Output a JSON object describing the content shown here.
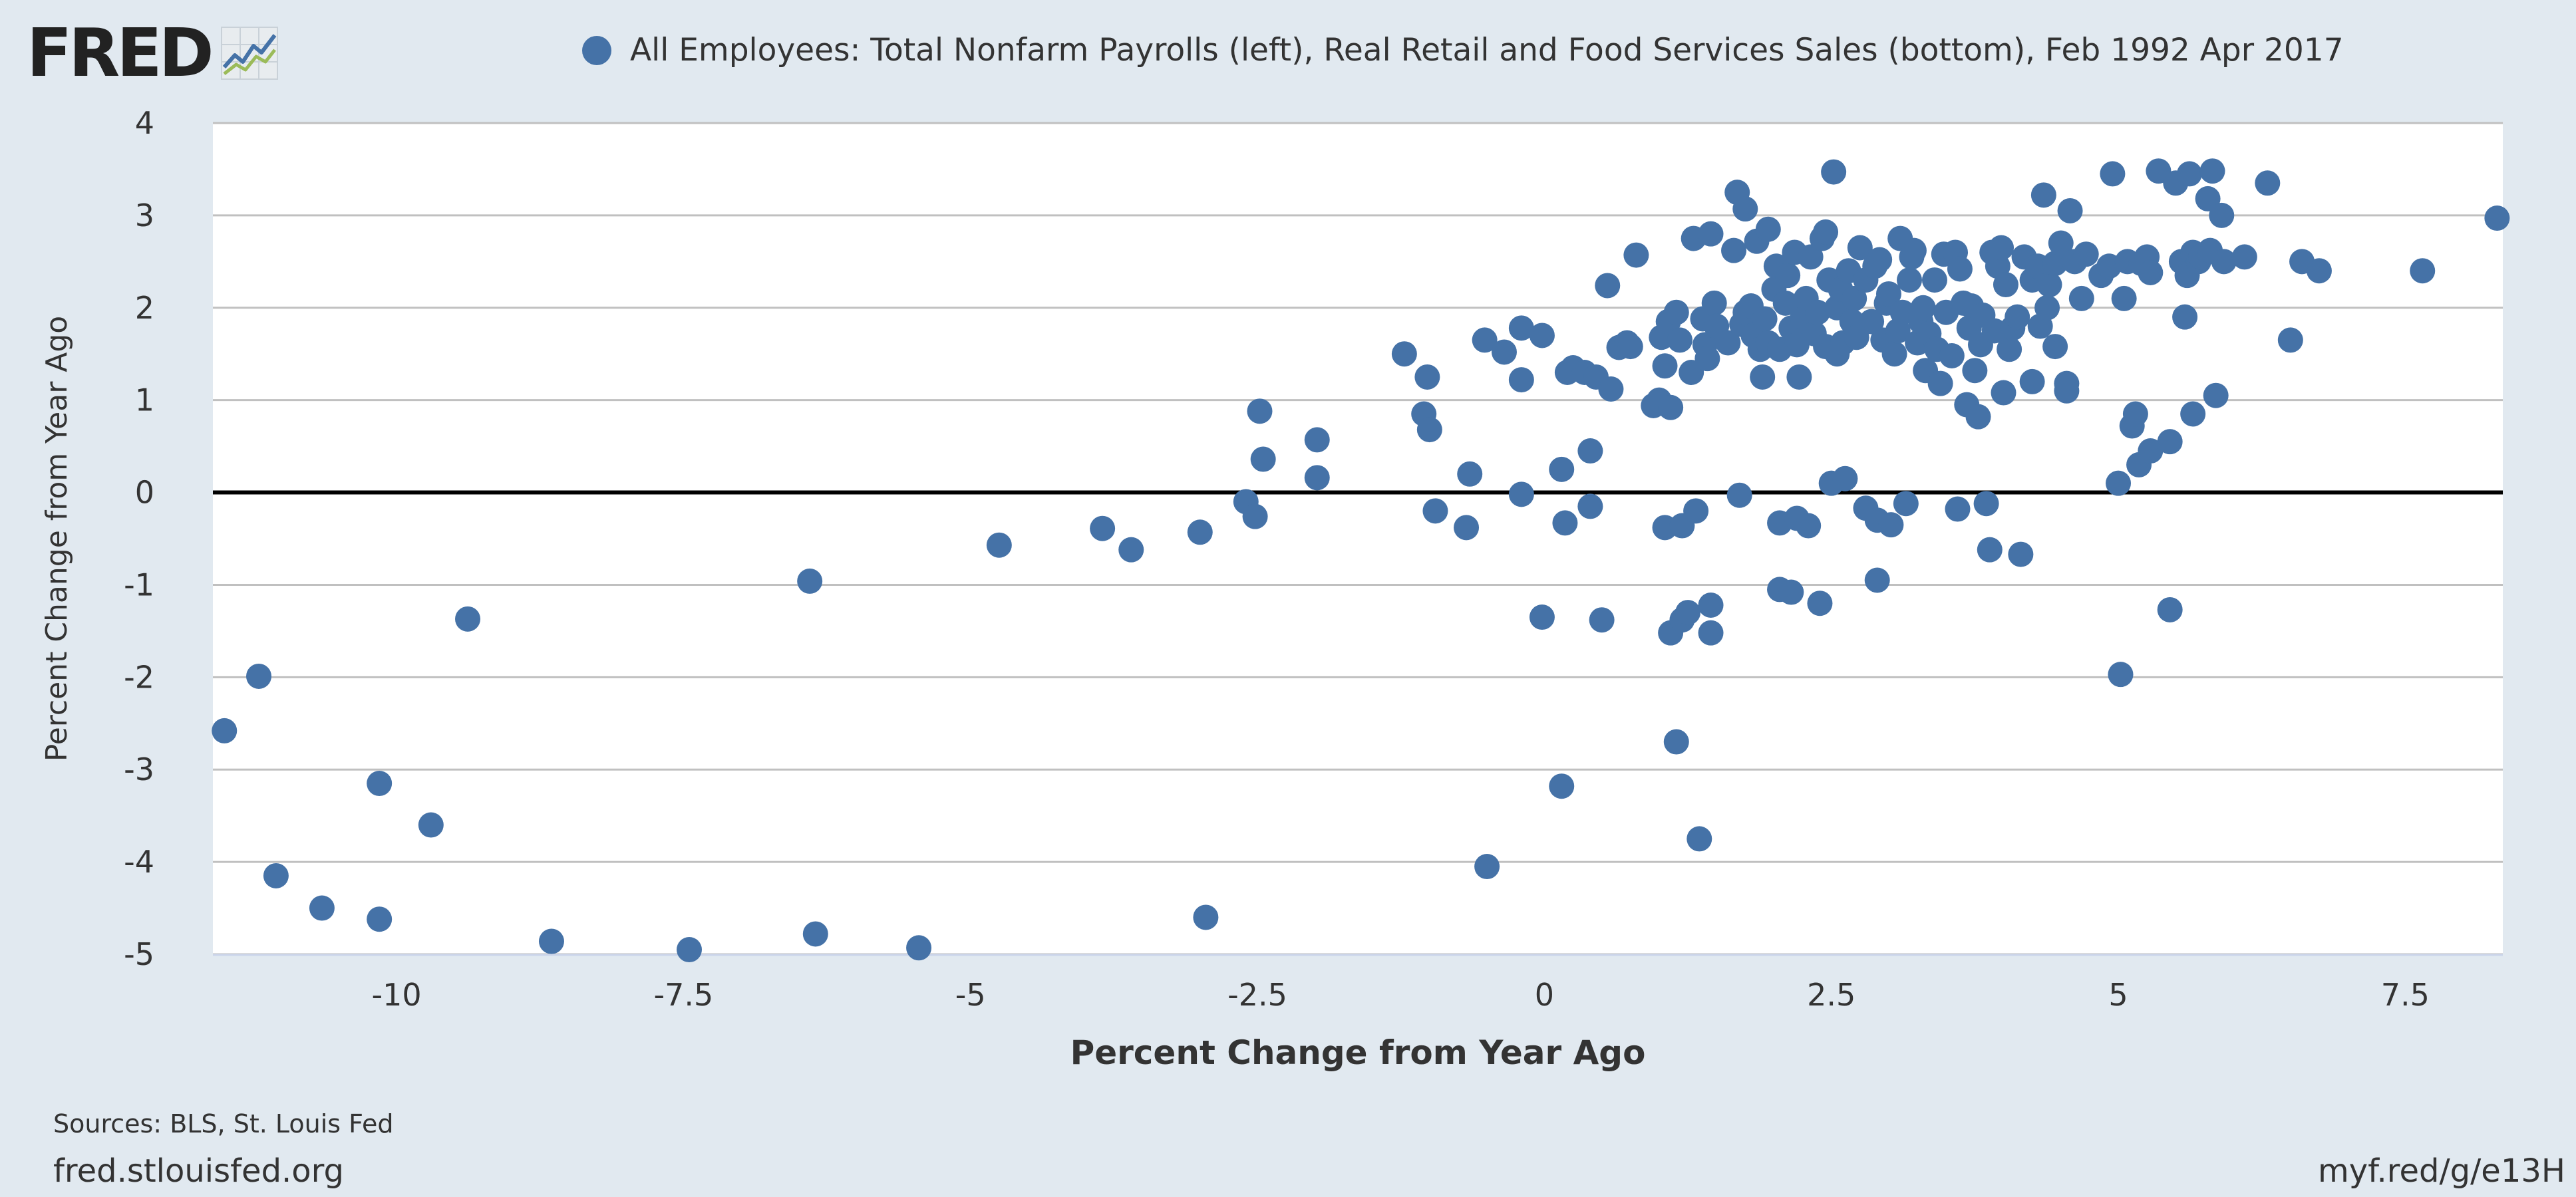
{
  "header": {
    "logo_text": "FRED",
    "logo_icon": "chart-trend-icon",
    "legend_label": "All Employees: Total Nonfarm Payrolls (left), Real Retail and Food Services Sales (bottom), Feb 1992 Apr 2017"
  },
  "footer": {
    "sources": "Sources: BLS, St. Louis Fed",
    "site": "fred.stlouisfed.org",
    "short_link": "myf.red/g/e13H"
  },
  "colors": {
    "background": "#e1e9f0",
    "plot_background": "#ffffff",
    "series": "#4572a7",
    "zero_line": "#000000",
    "grid": "#c0c0c0"
  },
  "chart_data": {
    "type": "scatter",
    "title": "",
    "xlabel": "Percent Change from Year Ago",
    "ylabel": "Percent Change from Year Ago",
    "xlim": [
      -11.6,
      8.35
    ],
    "ylim": [
      -5,
      4
    ],
    "x_ticks": [
      -10,
      -7.5,
      -5,
      -2.5,
      0,
      2.5,
      5,
      7.5
    ],
    "x_tick_labels": [
      "-10",
      "-7.5",
      "-5",
      "-2.5",
      "0",
      "2.5",
      "5",
      "7.5"
    ],
    "y_ticks": [
      4,
      3,
      2,
      1,
      0,
      -1,
      -2,
      -3,
      -4,
      -5
    ],
    "y_tick_labels": [
      "4",
      "3",
      "2",
      "1",
      "0",
      "-1",
      "-2",
      "-3",
      "-4",
      "-5"
    ],
    "grid": true,
    "zero_line": true,
    "legend_placement": "top",
    "series": [
      {
        "name": "All Employees: Total Nonfarm Payrolls (left), Real Retail and Food Services Sales (bottom), Feb 1992 Apr 2017",
        "points": [
          [
            -11.5,
            -2.58
          ],
          [
            -11.2,
            -1.99
          ],
          [
            -11.05,
            -4.15
          ],
          [
            -10.65,
            -4.5
          ],
          [
            -10.15,
            -3.15
          ],
          [
            -10.15,
            -4.62
          ],
          [
            -9.7,
            -3.6
          ],
          [
            -9.38,
            -1.37
          ],
          [
            -8.65,
            -4.86
          ],
          [
            -7.45,
            -4.95
          ],
          [
            -6.35,
            -4.78
          ],
          [
            -6.4,
            -0.96
          ],
          [
            -5.45,
            -4.93
          ],
          [
            -4.75,
            -0.57
          ],
          [
            -3.85,
            -0.39
          ],
          [
            -3.6,
            -0.62
          ],
          [
            -3.0,
            -0.43
          ],
          [
            -2.95,
            -4.6
          ],
          [
            -2.6,
            -0.1
          ],
          [
            -2.52,
            -0.26
          ],
          [
            -2.48,
            0.88
          ],
          [
            -2.45,
            0.36
          ],
          [
            -1.98,
            0.57
          ],
          [
            -1.98,
            0.16
          ],
          [
            -1.22,
            1.5
          ],
          [
            -1.05,
            0.85
          ],
          [
            -1.02,
            1.25
          ],
          [
            -1.0,
            0.68
          ],
          [
            -0.95,
            -0.2
          ],
          [
            -0.65,
            0.2
          ],
          [
            -0.68,
            -0.38
          ],
          [
            -0.52,
            1.65
          ],
          [
            -0.5,
            -4.05
          ],
          [
            -0.35,
            1.52
          ],
          [
            -0.2,
            1.22
          ],
          [
            -0.2,
            1.78
          ],
          [
            -0.2,
            -0.02
          ],
          [
            -0.02,
            1.7
          ],
          [
            -0.02,
            -1.35
          ],
          [
            0.15,
            0.25
          ],
          [
            0.15,
            -3.18
          ],
          [
            0.18,
            -0.33
          ],
          [
            0.2,
            1.3
          ],
          [
            0.25,
            1.35
          ],
          [
            0.35,
            1.3
          ],
          [
            0.4,
            -0.15
          ],
          [
            0.4,
            0.45
          ],
          [
            0.45,
            1.25
          ],
          [
            0.5,
            -1.38
          ],
          [
            0.55,
            2.24
          ],
          [
            0.58,
            1.12
          ],
          [
            0.65,
            1.57
          ],
          [
            0.72,
            1.62
          ],
          [
            0.75,
            1.58
          ],
          [
            0.8,
            2.57
          ],
          [
            0.95,
            0.94
          ],
          [
            1.0,
            1.0
          ],
          [
            1.02,
            1.68
          ],
          [
            1.05,
            1.37
          ],
          [
            1.05,
            -0.38
          ],
          [
            1.08,
            1.85
          ],
          [
            1.1,
            0.92
          ],
          [
            1.1,
            -1.52
          ],
          [
            1.15,
            1.95
          ],
          [
            1.15,
            -2.7
          ],
          [
            1.18,
            1.65
          ],
          [
            1.2,
            -1.38
          ],
          [
            1.2,
            -0.36
          ],
          [
            1.25,
            -1.3
          ],
          [
            1.28,
            1.3
          ],
          [
            1.3,
            2.75
          ],
          [
            1.32,
            -0.2
          ],
          [
            1.35,
            -3.75
          ],
          [
            1.38,
            1.88
          ],
          [
            1.4,
            1.6
          ],
          [
            1.42,
            1.45
          ],
          [
            1.45,
            2.8
          ],
          [
            1.45,
            -1.52
          ],
          [
            1.45,
            -1.22
          ],
          [
            1.48,
            2.05
          ],
          [
            1.5,
            1.8
          ],
          [
            1.6,
            1.62
          ],
          [
            1.65,
            2.62
          ],
          [
            1.68,
            3.25
          ],
          [
            1.7,
            -0.03
          ],
          [
            1.72,
            1.82
          ],
          [
            1.75,
            3.07
          ],
          [
            1.75,
            1.95
          ],
          [
            1.8,
            2.02
          ],
          [
            1.82,
            1.7
          ],
          [
            1.85,
            2.72
          ],
          [
            1.88,
            1.55
          ],
          [
            1.9,
            1.25
          ],
          [
            1.92,
            1.88
          ],
          [
            1.95,
            2.85
          ],
          [
            1.95,
            1.62
          ],
          [
            2.0,
            2.2
          ],
          [
            2.02,
            2.45
          ],
          [
            2.05,
            1.55
          ],
          [
            2.05,
            -0.33
          ],
          [
            2.05,
            -1.05
          ],
          [
            2.1,
            2.05
          ],
          [
            2.12,
            2.35
          ],
          [
            2.15,
            1.78
          ],
          [
            2.15,
            -1.08
          ],
          [
            2.18,
            2.6
          ],
          [
            2.2,
            1.6
          ],
          [
            2.2,
            -0.28
          ],
          [
            2.22,
            1.25
          ],
          [
            2.25,
            1.9
          ],
          [
            2.28,
            2.1
          ],
          [
            2.3,
            -0.36
          ],
          [
            2.32,
            2.55
          ],
          [
            2.35,
            1.72
          ],
          [
            2.38,
            1.95
          ],
          [
            2.4,
            -1.2
          ],
          [
            2.42,
            2.75
          ],
          [
            2.45,
            2.82
          ],
          [
            2.45,
            1.58
          ],
          [
            2.48,
            2.3
          ],
          [
            2.5,
            0.1
          ],
          [
            2.52,
            3.47
          ],
          [
            2.55,
            1.5
          ],
          [
            2.55,
            2.0
          ],
          [
            2.58,
            2.2
          ],
          [
            2.6,
            1.62
          ],
          [
            2.62,
            0.15
          ],
          [
            2.65,
            2.4
          ],
          [
            2.68,
            1.85
          ],
          [
            2.7,
            2.1
          ],
          [
            2.72,
            1.68
          ],
          [
            2.75,
            2.65
          ],
          [
            2.8,
            2.3
          ],
          [
            2.8,
            -0.17
          ],
          [
            2.85,
            1.85
          ],
          [
            2.88,
            2.45
          ],
          [
            2.9,
            -0.95
          ],
          [
            2.9,
            -0.3
          ],
          [
            2.92,
            2.52
          ],
          [
            2.95,
            1.65
          ],
          [
            2.98,
            2.05
          ],
          [
            3.0,
            2.15
          ],
          [
            3.02,
            -0.35
          ],
          [
            3.05,
            1.5
          ],
          [
            3.08,
            1.75
          ],
          [
            3.1,
            2.75
          ],
          [
            3.12,
            1.95
          ],
          [
            3.15,
            -0.12
          ],
          [
            3.18,
            2.3
          ],
          [
            3.2,
            2.55
          ],
          [
            3.22,
            2.62
          ],
          [
            3.25,
            1.62
          ],
          [
            3.28,
            1.85
          ],
          [
            3.3,
            2.0
          ],
          [
            3.32,
            1.32
          ],
          [
            3.35,
            1.72
          ],
          [
            3.4,
            2.3
          ],
          [
            3.42,
            1.55
          ],
          [
            3.45,
            1.18
          ],
          [
            3.48,
            2.58
          ],
          [
            3.5,
            1.95
          ],
          [
            3.55,
            1.48
          ],
          [
            3.58,
            2.6
          ],
          [
            3.6,
            -0.18
          ],
          [
            3.62,
            2.42
          ],
          [
            3.65,
            2.05
          ],
          [
            3.68,
            0.95
          ],
          [
            3.7,
            1.78
          ],
          [
            3.72,
            2.02
          ],
          [
            3.75,
            1.32
          ],
          [
            3.78,
            0.82
          ],
          [
            3.8,
            1.6
          ],
          [
            3.82,
            1.92
          ],
          [
            3.85,
            -0.12
          ],
          [
            3.88,
            -0.62
          ],
          [
            3.9,
            2.6
          ],
          [
            3.92,
            1.75
          ],
          [
            3.95,
            2.45
          ],
          [
            3.98,
            2.65
          ],
          [
            4.0,
            1.08
          ],
          [
            4.02,
            2.25
          ],
          [
            4.05,
            1.55
          ],
          [
            4.08,
            1.78
          ],
          [
            4.12,
            1.9
          ],
          [
            4.15,
            -0.67
          ],
          [
            4.18,
            2.55
          ],
          [
            4.25,
            2.3
          ],
          [
            4.25,
            1.2
          ],
          [
            4.3,
            2.45
          ],
          [
            4.32,
            1.8
          ],
          [
            4.35,
            3.22
          ],
          [
            4.38,
            2.0
          ],
          [
            4.4,
            2.25
          ],
          [
            4.45,
            2.48
          ],
          [
            4.45,
            1.58
          ],
          [
            4.5,
            2.7
          ],
          [
            4.55,
            1.18
          ],
          [
            4.55,
            1.1
          ],
          [
            4.58,
            3.05
          ],
          [
            4.62,
            2.5
          ],
          [
            4.68,
            2.1
          ],
          [
            4.72,
            2.58
          ],
          [
            4.85,
            2.35
          ],
          [
            4.92,
            2.45
          ],
          [
            4.95,
            3.45
          ],
          [
            5.0,
            0.1
          ],
          [
            5.02,
            -1.97
          ],
          [
            5.05,
            2.1
          ],
          [
            5.08,
            2.5
          ],
          [
            5.12,
            0.72
          ],
          [
            5.15,
            0.85
          ],
          [
            5.18,
            0.3
          ],
          [
            5.2,
            2.48
          ],
          [
            5.25,
            2.55
          ],
          [
            5.28,
            2.38
          ],
          [
            5.28,
            0.45
          ],
          [
            5.35,
            3.48
          ],
          [
            5.45,
            0.55
          ],
          [
            5.45,
            -1.27
          ],
          [
            5.5,
            3.35
          ],
          [
            5.55,
            2.5
          ],
          [
            5.58,
            1.9
          ],
          [
            5.6,
            2.35
          ],
          [
            5.62,
            3.45
          ],
          [
            5.65,
            2.6
          ],
          [
            5.65,
            0.85
          ],
          [
            5.7,
            2.5
          ],
          [
            5.72,
            2.55
          ],
          [
            5.78,
            3.18
          ],
          [
            5.8,
            2.62
          ],
          [
            5.82,
            3.48
          ],
          [
            5.85,
            1.05
          ],
          [
            5.9,
            3.0
          ],
          [
            5.92,
            2.5
          ],
          [
            6.1,
            2.55
          ],
          [
            6.3,
            3.35
          ],
          [
            6.5,
            1.65
          ],
          [
            6.6,
            2.5
          ],
          [
            6.75,
            2.4
          ],
          [
            7.65,
            2.4
          ],
          [
            8.3,
            2.97
          ]
        ]
      }
    ]
  }
}
